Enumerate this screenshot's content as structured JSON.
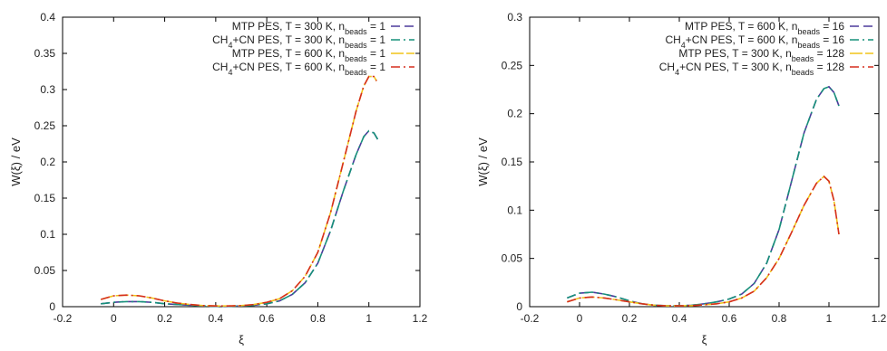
{
  "chart_data": [
    {
      "type": "line",
      "title": "",
      "xlabel": "ξ",
      "ylabel": "W(ξ) / eV",
      "xlim": [
        -0.2,
        1.2
      ],
      "ylim": [
        0,
        0.4
      ],
      "xticks": [
        "-0.2",
        "0",
        "0.2",
        "0.4",
        "0.6",
        "0.8",
        "1",
        "1.2"
      ],
      "yticks": [
        "0",
        "0.05",
        "0.1",
        "0.15",
        "0.2",
        "0.25",
        "0.3",
        "0.35",
        "0.4"
      ],
      "legend_position": "top-right",
      "grid": false,
      "series": [
        {
          "legend": {
            "pre": "MTP PES, T = 300 K, n",
            "sub": "beads",
            "post": " = 1"
          },
          "color": "#4b3a9c",
          "dash": "dashed",
          "x": [
            -0.05,
            0.0,
            0.05,
            0.1,
            0.15,
            0.2,
            0.25,
            0.3,
            0.35,
            0.4,
            0.45,
            0.5,
            0.55,
            0.6,
            0.65,
            0.7,
            0.75,
            0.8,
            0.85,
            0.9,
            0.95,
            0.98,
            1.0,
            1.02,
            1.04
          ],
          "y": [
            0.004,
            0.006,
            0.007,
            0.007,
            0.006,
            0.004,
            0.003,
            0.002,
            0.001,
            0.0005,
            0.0005,
            0.001,
            0.002,
            0.004,
            0.008,
            0.017,
            0.033,
            0.06,
            0.105,
            0.16,
            0.21,
            0.235,
            0.243,
            0.24,
            0.228
          ]
        },
        {
          "legend": {
            "pre": "CH",
            "sub1": "4",
            "mid": "+CN PES, T = 300 K, n",
            "sub": "beads",
            "post": " = 1"
          },
          "color": "#17907a",
          "dash": "dashdot",
          "x": [
            -0.05,
            0.0,
            0.05,
            0.1,
            0.15,
            0.2,
            0.25,
            0.3,
            0.35,
            0.4,
            0.45,
            0.5,
            0.55,
            0.6,
            0.65,
            0.7,
            0.75,
            0.8,
            0.85,
            0.9,
            0.95,
            0.98,
            1.0,
            1.02,
            1.04
          ],
          "y": [
            0.004,
            0.006,
            0.007,
            0.007,
            0.006,
            0.004,
            0.003,
            0.002,
            0.001,
            0.0005,
            0.0005,
            0.001,
            0.002,
            0.004,
            0.008,
            0.017,
            0.033,
            0.06,
            0.105,
            0.16,
            0.21,
            0.235,
            0.243,
            0.24,
            0.228
          ]
        },
        {
          "legend": {
            "pre": "MTP PES, T = 600 K, n",
            "sub": "beads",
            "post": " = 1"
          },
          "color": "#f0c419",
          "dash": "solid-long",
          "x": [
            -0.05,
            0.0,
            0.05,
            0.1,
            0.15,
            0.2,
            0.25,
            0.3,
            0.35,
            0.4,
            0.45,
            0.5,
            0.55,
            0.6,
            0.65,
            0.7,
            0.75,
            0.8,
            0.85,
            0.9,
            0.95,
            0.98,
            1.0,
            1.02,
            1.03
          ],
          "y": [
            0.01,
            0.015,
            0.016,
            0.015,
            0.012,
            0.008,
            0.005,
            0.003,
            0.0015,
            0.001,
            0.001,
            0.0015,
            0.003,
            0.006,
            0.011,
            0.022,
            0.042,
            0.075,
            0.13,
            0.2,
            0.27,
            0.305,
            0.318,
            0.318,
            0.312
          ]
        },
        {
          "legend": {
            "pre": "CH",
            "sub1": "4",
            "mid": "+CN PES, T = 600 K, n",
            "sub": "beads",
            "post": " = 1"
          },
          "color": "#d62f1e",
          "dash": "dashdot",
          "x": [
            -0.05,
            0.0,
            0.05,
            0.1,
            0.15,
            0.2,
            0.25,
            0.3,
            0.35,
            0.4,
            0.45,
            0.5,
            0.55,
            0.6,
            0.65,
            0.7,
            0.75,
            0.8,
            0.85,
            0.9,
            0.95,
            0.98,
            1.0,
            1.02,
            1.03
          ],
          "y": [
            0.01,
            0.015,
            0.016,
            0.015,
            0.012,
            0.008,
            0.005,
            0.003,
            0.0015,
            0.001,
            0.001,
            0.0015,
            0.003,
            0.006,
            0.011,
            0.022,
            0.042,
            0.075,
            0.13,
            0.2,
            0.27,
            0.305,
            0.318,
            0.318,
            0.312
          ]
        }
      ]
    },
    {
      "type": "line",
      "title": "",
      "xlabel": "ξ",
      "ylabel": "W(ξ) / eV",
      "xlim": [
        -0.2,
        1.2
      ],
      "ylim": [
        0,
        0.3
      ],
      "xticks": [
        "-0.2",
        "0",
        "0.2",
        "0.4",
        "0.6",
        "0.8",
        "1",
        "1.2"
      ],
      "yticks": [
        "0",
        "0.05",
        "0.1",
        "0.15",
        "0.2",
        "0.25",
        "0.3"
      ],
      "legend_position": "top-right",
      "grid": false,
      "series": [
        {
          "legend": {
            "pre": "MTP PES, T = 600 K, n",
            "sub": "beads",
            "post": " = 16"
          },
          "color": "#4b3a9c",
          "dash": "dashed",
          "x": [
            -0.05,
            0.0,
            0.05,
            0.1,
            0.15,
            0.2,
            0.25,
            0.3,
            0.35,
            0.4,
            0.45,
            0.5,
            0.55,
            0.6,
            0.65,
            0.7,
            0.75,
            0.8,
            0.85,
            0.9,
            0.95,
            0.98,
            1.0,
            1.02,
            1.04
          ],
          "y": [
            0.009,
            0.014,
            0.015,
            0.013,
            0.01,
            0.006,
            0.003,
            0.0015,
            0.001,
            0.001,
            0.0015,
            0.003,
            0.005,
            0.008,
            0.013,
            0.024,
            0.045,
            0.08,
            0.13,
            0.18,
            0.215,
            0.226,
            0.228,
            0.222,
            0.208
          ]
        },
        {
          "legend": {
            "pre": "CH",
            "sub1": "4",
            "mid": "+CN PES, T = 600 K, n",
            "sub": "beads",
            "post": " = 16"
          },
          "color": "#17907a",
          "dash": "dashdot",
          "x": [
            -0.05,
            0.0,
            0.05,
            0.1,
            0.15,
            0.2,
            0.25,
            0.3,
            0.35,
            0.4,
            0.45,
            0.5,
            0.55,
            0.6,
            0.65,
            0.7,
            0.75,
            0.8,
            0.85,
            0.9,
            0.95,
            0.98,
            1.0,
            1.02,
            1.04
          ],
          "y": [
            0.009,
            0.014,
            0.015,
            0.013,
            0.01,
            0.006,
            0.003,
            0.0015,
            0.001,
            0.001,
            0.0015,
            0.003,
            0.005,
            0.008,
            0.013,
            0.024,
            0.045,
            0.08,
            0.13,
            0.18,
            0.215,
            0.226,
            0.228,
            0.222,
            0.208
          ]
        },
        {
          "legend": {
            "pre": "MTP PES, T = 300 K, n",
            "sub": "beads",
            "post": " = 128"
          },
          "color": "#f0c419",
          "dash": "solid-long",
          "x": [
            -0.05,
            0.0,
            0.05,
            0.1,
            0.15,
            0.2,
            0.25,
            0.3,
            0.35,
            0.4,
            0.45,
            0.5,
            0.55,
            0.6,
            0.65,
            0.7,
            0.75,
            0.8,
            0.85,
            0.9,
            0.95,
            0.98,
            1.0,
            1.02,
            1.04
          ],
          "y": [
            0.005,
            0.009,
            0.01,
            0.009,
            0.007,
            0.005,
            0.003,
            0.0015,
            0.0008,
            0.0008,
            0.001,
            0.002,
            0.003,
            0.005,
            0.009,
            0.016,
            0.03,
            0.05,
            0.077,
            0.105,
            0.128,
            0.135,
            0.13,
            0.11,
            0.075
          ]
        },
        {
          "legend": {
            "pre": "CH",
            "sub1": "4",
            "mid": "+CN PES, T = 300 K, n",
            "sub": "beads",
            "post": " = 128"
          },
          "color": "#d62f1e",
          "dash": "dashdot",
          "x": [
            -0.05,
            0.0,
            0.05,
            0.1,
            0.15,
            0.2,
            0.25,
            0.3,
            0.35,
            0.4,
            0.45,
            0.5,
            0.55,
            0.6,
            0.65,
            0.7,
            0.75,
            0.8,
            0.85,
            0.9,
            0.95,
            0.98,
            1.0,
            1.02,
            1.04
          ],
          "y": [
            0.005,
            0.009,
            0.01,
            0.009,
            0.007,
            0.005,
            0.003,
            0.0015,
            0.0008,
            0.0008,
            0.001,
            0.002,
            0.003,
            0.005,
            0.009,
            0.016,
            0.03,
            0.05,
            0.077,
            0.105,
            0.128,
            0.135,
            0.13,
            0.11,
            0.075
          ]
        }
      ]
    }
  ]
}
